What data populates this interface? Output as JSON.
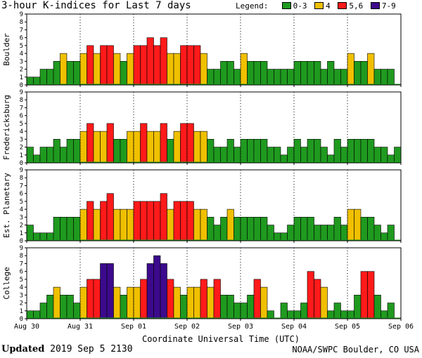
{
  "title": "3-hour K-indices for Last 7 days",
  "legend": {
    "title": "Legend:",
    "items": [
      {
        "label": "0-3",
        "color": "#1f9a1f"
      },
      {
        "label": "4",
        "color": "#f0c000"
      },
      {
        "label": "5,6",
        "color": "#ff1a1a"
      },
      {
        "label": "7-9",
        "color": "#3c0a8c"
      }
    ]
  },
  "footer": {
    "updated_label": "Updated",
    "updated_value": "2019 Sep  5 2130",
    "credit": "NOAA/SWPC Boulder, CO USA"
  },
  "chart_data": {
    "type": "bar",
    "xlabel": "Coordinate Universal Time (UTC)",
    "x_ticks": [
      "Aug 30",
      "Aug 31",
      "Sep 01",
      "Sep 02",
      "Sep 03",
      "Sep 04",
      "Sep 05",
      "Sep 06"
    ],
    "ylim": [
      0,
      9
    ],
    "y_ticks": [
      "0",
      "1",
      "2",
      "3",
      "4",
      "5",
      "6",
      "7",
      "8",
      "9"
    ],
    "color_scale": [
      {
        "range": "0-3",
        "color": "#1f9a1f"
      },
      {
        "range": "4",
        "color": "#f0c000"
      },
      {
        "range": "5-6",
        "color": "#ff1a1a"
      },
      {
        "range": "7-9",
        "color": "#3c0a8c"
      }
    ],
    "series": [
      {
        "name": "Boulder",
        "values": [
          1,
          1,
          2,
          2,
          3,
          4,
          3,
          3,
          4,
          5,
          4,
          5,
          5,
          4,
          3,
          4,
          5,
          5,
          6,
          5,
          6,
          4,
          4,
          5,
          5,
          5,
          4,
          2,
          2,
          3,
          3,
          2,
          4,
          3,
          3,
          3,
          2,
          2,
          2,
          2,
          3,
          3,
          3,
          3,
          2,
          3,
          2,
          2,
          4,
          3,
          3,
          4,
          2,
          2,
          2,
          0
        ]
      },
      {
        "name": "Fredericksburg",
        "values": [
          2,
          1,
          2,
          2,
          3,
          2,
          3,
          3,
          4,
          5,
          4,
          4,
          5,
          3,
          3,
          4,
          4,
          5,
          4,
          4,
          5,
          3,
          4,
          5,
          5,
          4,
          4,
          3,
          2,
          2,
          3,
          2,
          3,
          3,
          3,
          3,
          2,
          2,
          1,
          2,
          3,
          2,
          3,
          3,
          2,
          1,
          3,
          2,
          3,
          3,
          3,
          3,
          2,
          2,
          1,
          2
        ]
      },
      {
        "name": "Est. Planetary",
        "values": [
          2,
          1,
          1,
          1,
          3,
          3,
          3,
          3,
          4,
          5,
          4,
          5,
          6,
          4,
          4,
          4,
          5,
          5,
          5,
          5,
          6,
          4,
          5,
          5,
          5,
          4,
          4,
          3,
          2,
          3,
          4,
          3,
          3,
          3,
          3,
          3,
          2,
          1,
          1,
          2,
          3,
          3,
          3,
          2,
          2,
          2,
          3,
          2,
          4,
          4,
          3,
          3,
          2,
          1,
          2,
          0
        ]
      },
      {
        "name": "College",
        "values": [
          1,
          1,
          2,
          3,
          4,
          3,
          3,
          2,
          4,
          5,
          5,
          7,
          7,
          4,
          3,
          4,
          4,
          5,
          7,
          8,
          7,
          5,
          4,
          3,
          4,
          4,
          5,
          4,
          5,
          3,
          3,
          2,
          2,
          3,
          5,
          4,
          1,
          0,
          2,
          1,
          1,
          2,
          6,
          5,
          4,
          1,
          2,
          1,
          1,
          3,
          6,
          6,
          3,
          1,
          2,
          0
        ]
      }
    ]
  }
}
